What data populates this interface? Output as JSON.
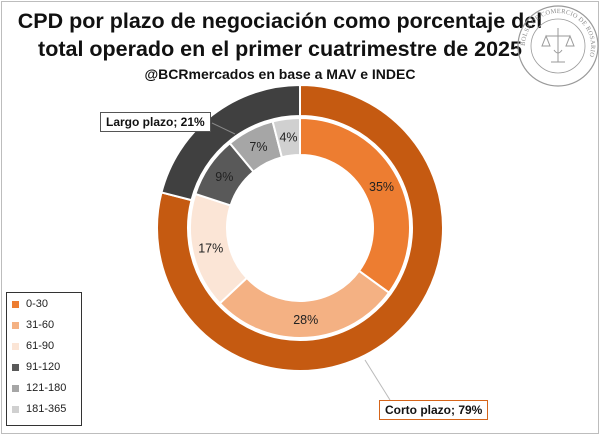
{
  "title": "CPD por plazo de negociación como porcentaje del total operado en el primer cuatrimestre de 2025",
  "subtitle": "@BCRmercados en base a MAV e INDEC",
  "seal": {
    "text": "BOLSA DE COMERCIO DE ROSARIO"
  },
  "colors": {
    "outer_short": "#c55a11",
    "outer_long": "#404040",
    "d0_30": "#ed7d31",
    "d31_60": "#f4b183",
    "d61_90": "#fbe5d6",
    "d91_120": "#595959",
    "d121_180": "#a6a6a6",
    "d181_365": "#d0d0d0"
  },
  "callouts": {
    "long": "Largo plazo; 21%",
    "short": "Corto plazo; 79%"
  },
  "legend": [
    {
      "label": "0-30",
      "color": "#ed7d31"
    },
    {
      "label": "31-60",
      "color": "#f4b183"
    },
    {
      "label": "61-90",
      "color": "#fbe5d6"
    },
    {
      "label": "91-120",
      "color": "#595959"
    },
    {
      "label": "121-180",
      "color": "#a6a6a6"
    },
    {
      "label": "181-365",
      "color": "#d0d0d0"
    }
  ],
  "chart_data": {
    "type": "pie",
    "subtype": "doughnut",
    "unit": "%",
    "inner_ring": {
      "categories": [
        "0-30",
        "31-60",
        "61-90",
        "91-120",
        "121-180",
        "181-365"
      ],
      "values": [
        35,
        28,
        17,
        9,
        7,
        4
      ],
      "labels": [
        "35%",
        "28%",
        "17%",
        "9%",
        "7%",
        "4%"
      ]
    },
    "outer_ring": {
      "categories": [
        "Corto plazo",
        "Largo plazo"
      ],
      "values": [
        79,
        21
      ],
      "labels": [
        "Corto plazo; 79%",
        "Largo plazo; 21%"
      ]
    },
    "legend_position": "bottom-left"
  }
}
